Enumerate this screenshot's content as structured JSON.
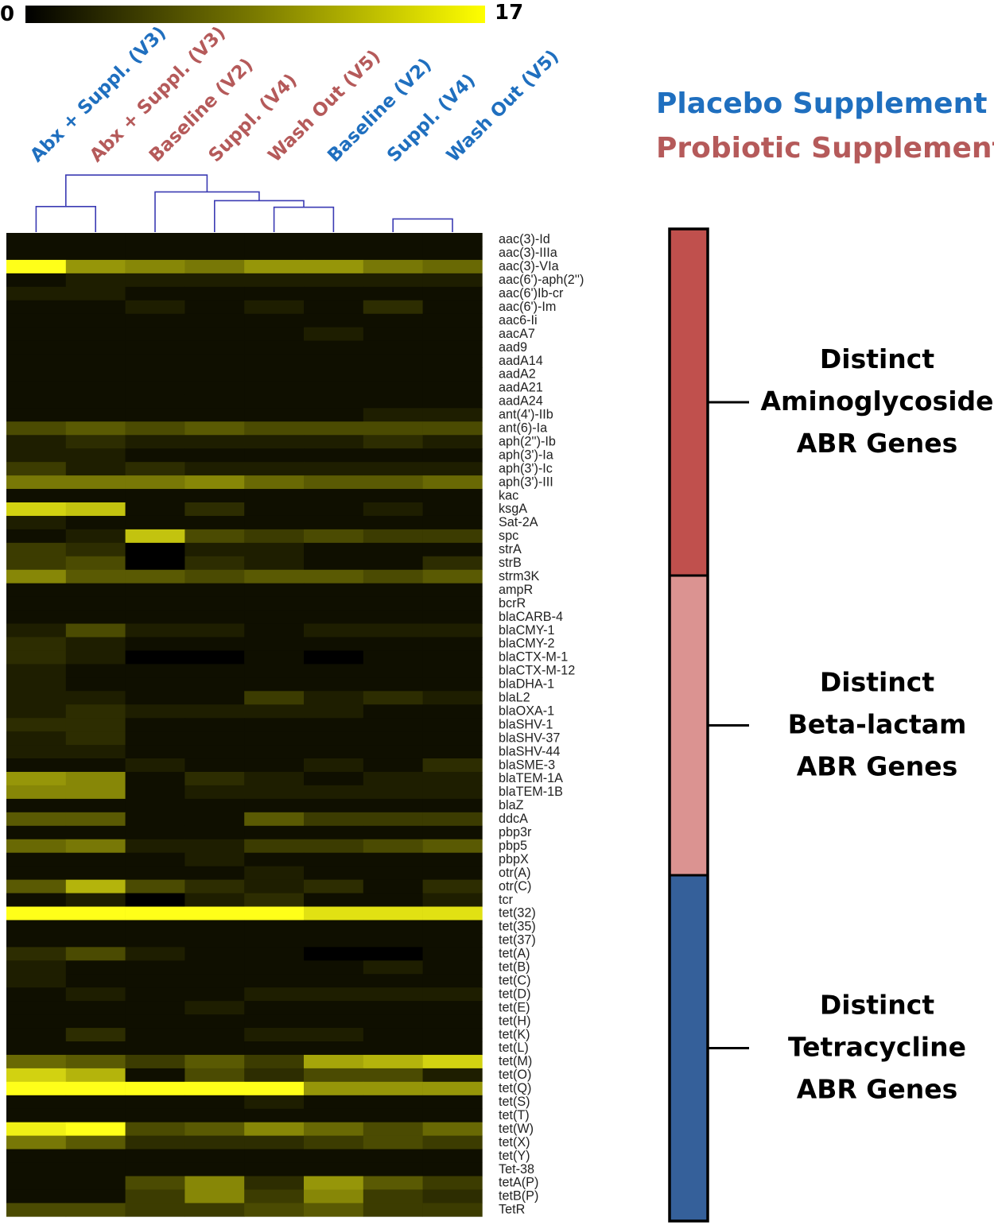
{
  "colors": {
    "placebo": "#1f6fbf",
    "probiotic": "#b55a5a",
    "dendrogram": "#3b3bb3",
    "aminoglycoside": "#c0504d",
    "beta_lactam": "#db9391",
    "tetracycline": "#35609a",
    "heat_low": "#000000",
    "heat_mid": "#7a7a00",
    "heat_high": "#ffff00"
  },
  "legend": {
    "placebo": "Placebo Supplement",
    "probiotic": "Probiotic Supplement"
  },
  "chart_data": {
    "type": "heatmap",
    "title": "",
    "color_scale": {
      "min": 0,
      "max": 17,
      "min_label": "0",
      "max_label": "17"
    },
    "columns": [
      {
        "label": "Abx + Suppl. (V3)",
        "group": "placebo"
      },
      {
        "label": "Abx + Suppl. (V3)",
        "group": "probiotic"
      },
      {
        "label": "Baseline (V2)",
        "group": "probiotic"
      },
      {
        "label": "Suppl. (V4)",
        "group": "probiotic"
      },
      {
        "label": "Wash Out (V5)",
        "group": "probiotic"
      },
      {
        "label": "Baseline (V2)",
        "group": "placebo"
      },
      {
        "label": "Suppl. (V4)",
        "group": "placebo"
      },
      {
        "label": "Wash Out (V5)",
        "group": "placebo"
      }
    ],
    "dendrogram_merges": [
      [
        0,
        1,
        0.35
      ],
      [
        6,
        7,
        0.18
      ],
      [
        4,
        5,
        0.34
      ],
      [
        3,
        4,
        0.43
      ],
      [
        2,
        3,
        0.55
      ],
      [
        0,
        2,
        0.78
      ]
    ],
    "rows": [
      "aac(3)-Id",
      "aac(3)-IIIa",
      "aac(3)-VIa",
      "aac(6')-aph(2'')",
      "aac(6')Ib-cr",
      "aac(6')-Im",
      "aac6-Ii",
      "aacA7",
      "aad9",
      "aadA14",
      "aadA2",
      "aadA21",
      "aadA24",
      "ant(4')-IIb",
      "ant(6)-Ia",
      "aph(2'')-Ib",
      "aph(3')-Ia",
      "aph(3')-Ic",
      "aph(3')-III",
      "kac",
      "ksgA",
      "Sat-2A",
      "spc",
      "strA",
      "strB",
      "strm3K",
      "ampR",
      "bcrR",
      "blaCARB-4",
      "blaCMY-1",
      "blaCMY-2",
      "blaCTX-M-1",
      "blaCTX-M-12",
      "blaDHA-1",
      "blaL2",
      "blaOXA-1",
      "blaSHV-1",
      "blaSHV-37",
      "blaSHV-44",
      "blaSME-3",
      "blaTEM-1A",
      "blaTEM-1B",
      "blaZ",
      "ddcA",
      "pbp3r",
      "pbp5",
      "pbpX",
      "otr(A)",
      "otr(C)",
      "tcr",
      "tet(32)",
      "tet(35)",
      "tet(37)",
      "tet(A)",
      "tet(B)",
      "tet(C)",
      "tet(D)",
      "tet(E)",
      "tet(H)",
      "tet(K)",
      "tet(L)",
      "tet(M)",
      "tet(O)",
      "tet(Q)",
      "tet(S)",
      "tet(T)",
      "tet(W)",
      "tet(X)",
      "tet(Y)",
      "Tet-38",
      "tetA(P)",
      "tetB(P)",
      "TetR"
    ],
    "values": [
      [
        1,
        1,
        1,
        1,
        1,
        1,
        1,
        1
      ],
      [
        1,
        1,
        1,
        1,
        1,
        1,
        1,
        1
      ],
      [
        17,
        10,
        9,
        8,
        10,
        10,
        8,
        7
      ],
      [
        1,
        2,
        2,
        2,
        2,
        2,
        2,
        2
      ],
      [
        2,
        2,
        1,
        1,
        1,
        1,
        1,
        1
      ],
      [
        1,
        1,
        2,
        1,
        2,
        1,
        3,
        1
      ],
      [
        1,
        1,
        1,
        1,
        1,
        1,
        1,
        1
      ],
      [
        1,
        1,
        1,
        1,
        1,
        2,
        1,
        1
      ],
      [
        1,
        1,
        1,
        1,
        1,
        1,
        1,
        1
      ],
      [
        1,
        1,
        1,
        1,
        1,
        1,
        1,
        1
      ],
      [
        1,
        1,
        1,
        1,
        1,
        1,
        1,
        1
      ],
      [
        1,
        1,
        1,
        1,
        1,
        1,
        1,
        1
      ],
      [
        1,
        1,
        1,
        1,
        1,
        1,
        1,
        1
      ],
      [
        1,
        1,
        1,
        1,
        1,
        1,
        2,
        2
      ],
      [
        5,
        6,
        5,
        6,
        5,
        5,
        5,
        5
      ],
      [
        2,
        3,
        2,
        2,
        2,
        2,
        3,
        2
      ],
      [
        2,
        2,
        1,
        1,
        1,
        1,
        1,
        1
      ],
      [
        4,
        2,
        3,
        2,
        2,
        2,
        2,
        2
      ],
      [
        8,
        8,
        8,
        9,
        7,
        6,
        6,
        7
      ],
      [
        1,
        1,
        1,
        1,
        1,
        1,
        1,
        1
      ],
      [
        14,
        13,
        1,
        3,
        1,
        1,
        2,
        1
      ],
      [
        2,
        1,
        1,
        1,
        1,
        1,
        1,
        1
      ],
      [
        1,
        2,
        13,
        5,
        4,
        5,
        4,
        4
      ],
      [
        4,
        3,
        0,
        2,
        2,
        1,
        1,
        1
      ],
      [
        4,
        5,
        0,
        3,
        2,
        1,
        1,
        3
      ],
      [
        9,
        6,
        6,
        5,
        6,
        6,
        5,
        6
      ],
      [
        1,
        1,
        1,
        1,
        1,
        1,
        1,
        1
      ],
      [
        1,
        1,
        1,
        1,
        1,
        1,
        1,
        1
      ],
      [
        1,
        1,
        1,
        1,
        1,
        1,
        1,
        1
      ],
      [
        2,
        5,
        2,
        2,
        1,
        2,
        2,
        2
      ],
      [
        3,
        2,
        1,
        1,
        1,
        1,
        1,
        1
      ],
      [
        3,
        2,
        0,
        0,
        1,
        0,
        1,
        1
      ],
      [
        2,
        1,
        1,
        1,
        1,
        1,
        1,
        1
      ],
      [
        2,
        1,
        1,
        1,
        1,
        1,
        1,
        1
      ],
      [
        2,
        2,
        1,
        1,
        4,
        2,
        3,
        2
      ],
      [
        2,
        3,
        2,
        2,
        2,
        2,
        1,
        1
      ],
      [
        3,
        3,
        1,
        1,
        1,
        1,
        1,
        1
      ],
      [
        2,
        3,
        1,
        1,
        1,
        1,
        1,
        1
      ],
      [
        2,
        2,
        1,
        1,
        1,
        1,
        1,
        1
      ],
      [
        1,
        1,
        2,
        1,
        1,
        2,
        1,
        3
      ],
      [
        10,
        9,
        1,
        3,
        2,
        1,
        2,
        2
      ],
      [
        9,
        9,
        1,
        2,
        2,
        2,
        2,
        2
      ],
      [
        1,
        1,
        1,
        1,
        1,
        1,
        1,
        1
      ],
      [
        6,
        6,
        1,
        1,
        6,
        4,
        4,
        4
      ],
      [
        1,
        1,
        1,
        1,
        1,
        1,
        1,
        1
      ],
      [
        7,
        8,
        2,
        2,
        4,
        4,
        5,
        6
      ],
      [
        1,
        1,
        1,
        2,
        1,
        1,
        1,
        1
      ],
      [
        1,
        1,
        1,
        1,
        2,
        1,
        1,
        1
      ],
      [
        6,
        12,
        5,
        3,
        2,
        3,
        1,
        3
      ],
      [
        1,
        2,
        0,
        2,
        3,
        1,
        1,
        2
      ],
      [
        17,
        17,
        17,
        17,
        17,
        15,
        15,
        15
      ],
      [
        1,
        1,
        1,
        1,
        1,
        1,
        1,
        1
      ],
      [
        1,
        1,
        1,
        1,
        1,
        1,
        1,
        1
      ],
      [
        3,
        5,
        2,
        1,
        1,
        0,
        0,
        1
      ],
      [
        2,
        1,
        1,
        1,
        1,
        1,
        2,
        1
      ],
      [
        2,
        1,
        1,
        1,
        1,
        1,
        1,
        1
      ],
      [
        1,
        2,
        1,
        1,
        2,
        2,
        2,
        2
      ],
      [
        1,
        1,
        1,
        2,
        1,
        1,
        1,
        1
      ],
      [
        1,
        1,
        1,
        1,
        1,
        1,
        1,
        1
      ],
      [
        1,
        3,
        1,
        1,
        2,
        2,
        1,
        1
      ],
      [
        1,
        1,
        1,
        1,
        1,
        1,
        1,
        1
      ],
      [
        7,
        6,
        4,
        6,
        4,
        11,
        12,
        14
      ],
      [
        14,
        12,
        1,
        5,
        3,
        5,
        5,
        2
      ],
      [
        17,
        17,
        17,
        17,
        17,
        10,
        10,
        10
      ],
      [
        1,
        1,
        1,
        1,
        2,
        1,
        1,
        1
      ],
      [
        1,
        1,
        1,
        1,
        1,
        1,
        1,
        1
      ],
      [
        16,
        17,
        5,
        6,
        9,
        7,
        5,
        7
      ],
      [
        8,
        6,
        3,
        3,
        3,
        4,
        5,
        4
      ],
      [
        1,
        1,
        1,
        1,
        1,
        1,
        1,
        1
      ],
      [
        1,
        1,
        1,
        1,
        1,
        1,
        1,
        1
      ],
      [
        1,
        1,
        5,
        9,
        3,
        10,
        6,
        4
      ],
      [
        1,
        1,
        4,
        9,
        4,
        9,
        4,
        3
      ],
      [
        5,
        5,
        4,
        4,
        5,
        6,
        4,
        4
      ]
    ],
    "groups": [
      {
        "name": "aminoglycoside",
        "first_row": 0,
        "last_row": 25,
        "label": [
          "Distinct",
          "Aminoglycoside",
          "ABR Genes"
        ]
      },
      {
        "name": "beta_lactam",
        "first_row": 26,
        "last_row": 47,
        "label": [
          "Distinct",
          "Beta-lactam",
          "ABR Genes"
        ]
      },
      {
        "name": "tetracycline",
        "first_row": 48,
        "last_row": 72,
        "label": [
          "Distinct",
          "Tetracycline",
          "ABR Genes"
        ]
      }
    ]
  }
}
